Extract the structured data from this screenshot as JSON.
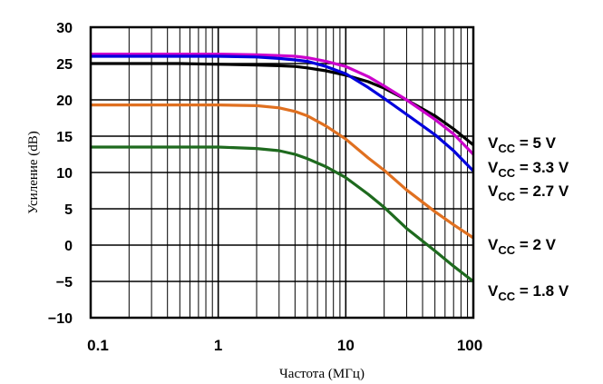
{
  "chart_data": {
    "type": "line",
    "title": "",
    "xlabel": "Частота (МГц)",
    "ylabel": "Усиление (dB)",
    "xscale": "log",
    "xlim": [
      0.1,
      100
    ],
    "ylim": [
      -10,
      30
    ],
    "grid": true,
    "legend_position": "right",
    "xticks": [
      0.1,
      1,
      10,
      100
    ],
    "xtick_labels": [
      "0.1",
      "1",
      "10",
      "100"
    ],
    "yticks": [
      30,
      25,
      20,
      15,
      10,
      5,
      0,
      -5,
      -10
    ],
    "ytick_labels": [
      "30",
      "25",
      "20",
      "15",
      "10",
      "5",
      "0",
      "−5",
      "−10"
    ],
    "x": [
      0.1,
      0.2,
      0.5,
      1,
      2,
      3,
      4,
      5,
      7,
      10,
      15,
      20,
      30,
      50,
      70,
      100
    ],
    "series": [
      {
        "name": "VCC = 5 V",
        "label_main": "V",
        "label_sub": "CC",
        "label_rest": " = 5 V",
        "color": "#000000",
        "values": [
          25.0,
          25.0,
          25.0,
          24.9,
          24.8,
          24.7,
          24.6,
          24.4,
          24.0,
          23.4,
          22.5,
          21.6,
          20.0,
          17.8,
          16.0,
          13.8
        ]
      },
      {
        "name": "VCC = 3.3 V",
        "label_main": "V",
        "label_sub": "CC",
        "label_rest": " = 3.3 V",
        "color": "#cc00cc",
        "values": [
          26.3,
          26.3,
          26.3,
          26.3,
          26.2,
          26.1,
          26.0,
          25.8,
          25.3,
          24.6,
          23.2,
          21.9,
          20.0,
          17.3,
          15.3,
          12.5
        ]
      },
      {
        "name": "VCC = 2.7 V",
        "label_main": "V",
        "label_sub": "CC",
        "label_rest": " = 2.7 V",
        "color": "#0000dd",
        "values": [
          26.0,
          26.0,
          26.0,
          26.0,
          25.9,
          25.7,
          25.5,
          25.3,
          24.6,
          23.6,
          21.7,
          20.2,
          18.0,
          15.2,
          13.0,
          10.2
        ]
      },
      {
        "name": "VCC = 2 V",
        "label_main": "V",
        "label_sub": "CC",
        "label_rest": " = 2 V",
        "color": "#e07020",
        "values": [
          19.3,
          19.3,
          19.3,
          19.3,
          19.2,
          18.9,
          18.4,
          17.8,
          16.4,
          14.6,
          12.0,
          10.3,
          7.6,
          4.6,
          2.8,
          1.0
        ]
      },
      {
        "name": "VCC = 1.8 V",
        "label_main": "V",
        "label_sub": "CC",
        "label_rest": " = 1.8 V",
        "color": "#1e6a1e",
        "values": [
          13.5,
          13.5,
          13.5,
          13.5,
          13.3,
          13.0,
          12.5,
          11.9,
          10.8,
          9.3,
          7.0,
          5.2,
          2.3,
          -0.8,
          -2.9,
          -5.0
        ]
      }
    ]
  }
}
